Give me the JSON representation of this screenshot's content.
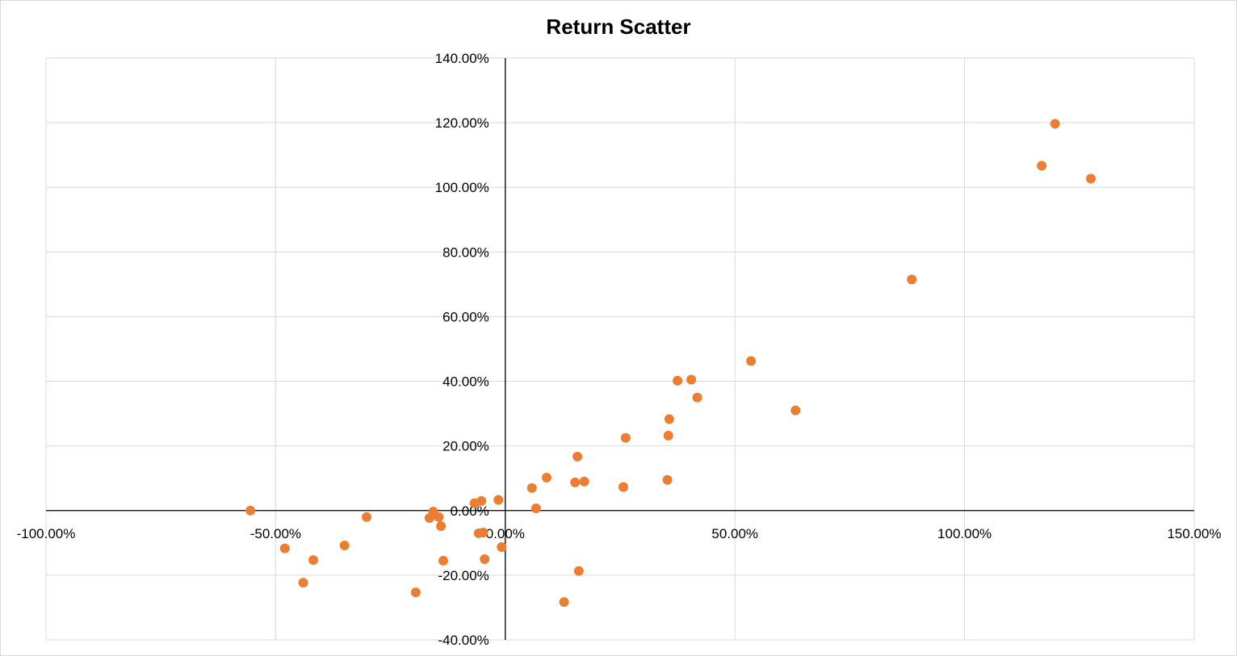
{
  "chart_data": {
    "type": "scatter",
    "title": "Return Scatter",
    "xlim": [
      -1.0,
      1.5
    ],
    "ylim": [
      -0.4,
      1.4
    ],
    "x_ticks": [
      -1.0,
      -0.5,
      0.0,
      0.5,
      1.0,
      1.5
    ],
    "y_ticks": [
      -0.4,
      -0.2,
      0.0,
      0.2,
      0.4,
      0.6,
      0.8,
      1.0,
      1.2,
      1.4
    ],
    "x_tick_labels": [
      "-100.00%",
      "-50.00%",
      "0.00%",
      "50.00%",
      "100.00%",
      "150.00%"
    ],
    "y_tick_labels": [
      "-40.00%",
      "-20.00%",
      "0.00%",
      "20.00%",
      "40.00%",
      "60.00%",
      "80.00%",
      "100.00%",
      "120.00%",
      "140.00%"
    ],
    "grid": true,
    "marker_color": "#ED7D31",
    "points": [
      {
        "x": -0.555,
        "y": 0.0
      },
      {
        "x": -0.48,
        "y": -0.117
      },
      {
        "x": -0.418,
        "y": -0.153
      },
      {
        "x": -0.44,
        "y": -0.223
      },
      {
        "x": -0.35,
        "y": -0.108
      },
      {
        "x": -0.302,
        "y": -0.02
      },
      {
        "x": -0.195,
        "y": -0.253
      },
      {
        "x": -0.165,
        "y": -0.023
      },
      {
        "x": -0.157,
        "y": -0.003
      },
      {
        "x": -0.145,
        "y": -0.02
      },
      {
        "x": -0.14,
        "y": -0.048
      },
      {
        "x": -0.135,
        "y": -0.155
      },
      {
        "x": -0.067,
        "y": 0.023
      },
      {
        "x": -0.052,
        "y": 0.03
      },
      {
        "x": -0.058,
        "y": -0.07
      },
      {
        "x": -0.048,
        "y": -0.068
      },
      {
        "x": -0.045,
        "y": -0.15
      },
      {
        "x": -0.015,
        "y": 0.033
      },
      {
        "x": -0.008,
        "y": -0.113
      },
      {
        "x": 0.058,
        "y": 0.07
      },
      {
        "x": 0.067,
        "y": 0.007
      },
      {
        "x": 0.09,
        "y": 0.102
      },
      {
        "x": 0.128,
        "y": -0.283
      },
      {
        "x": 0.152,
        "y": 0.087
      },
      {
        "x": 0.157,
        "y": 0.167
      },
      {
        "x": 0.16,
        "y": -0.187
      },
      {
        "x": 0.172,
        "y": 0.09
      },
      {
        "x": 0.257,
        "y": 0.073
      },
      {
        "x": 0.262,
        "y": 0.225
      },
      {
        "x": 0.353,
        "y": 0.095
      },
      {
        "x": 0.355,
        "y": 0.232
      },
      {
        "x": 0.357,
        "y": 0.283
      },
      {
        "x": 0.375,
        "y": 0.402
      },
      {
        "x": 0.405,
        "y": 0.405
      },
      {
        "x": 0.418,
        "y": 0.35
      },
      {
        "x": 0.535,
        "y": 0.463
      },
      {
        "x": 0.632,
        "y": 0.31
      },
      {
        "x": 0.885,
        "y": 0.715
      },
      {
        "x": 1.168,
        "y": 1.067
      },
      {
        "x": 1.197,
        "y": 1.197
      },
      {
        "x": 1.275,
        "y": 1.027
      }
    ]
  }
}
